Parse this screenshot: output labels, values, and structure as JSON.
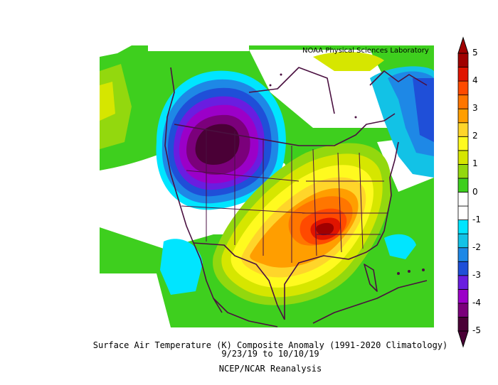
{
  "credit": "NOAA Physical Sciences Laboratory",
  "caption": {
    "line1": "Surface Air Temperature (K) Composite Anomaly (1991-2020 Climatology)",
    "line2": "9/23/19  to 10/10/19",
    "line3": "NCEP/NCAR Reanalysis"
  },
  "colorbar": {
    "ticks": [
      "5",
      "4",
      "3",
      "2",
      "1",
      "0",
      "-1",
      "-2",
      "-3",
      "-4",
      "-5"
    ],
    "colors": [
      "#4a0036",
      "#7b007b",
      "#9b00c8",
      "#6a1de0",
      "#1f4fd8",
      "#1e88e6",
      "#12c2e6",
      "#00e5ff",
      "#ffffff",
      "#ffffff",
      "#3ecf1e",
      "#93d80e",
      "#d6e600",
      "#fffa1f",
      "#ffd52a",
      "#ff9e00",
      "#ff7600",
      "#ff4a00",
      "#e01400",
      "#a00000"
    ]
  },
  "colors": {
    "land_border": "#4a1040",
    "background": "#ffffff"
  }
}
